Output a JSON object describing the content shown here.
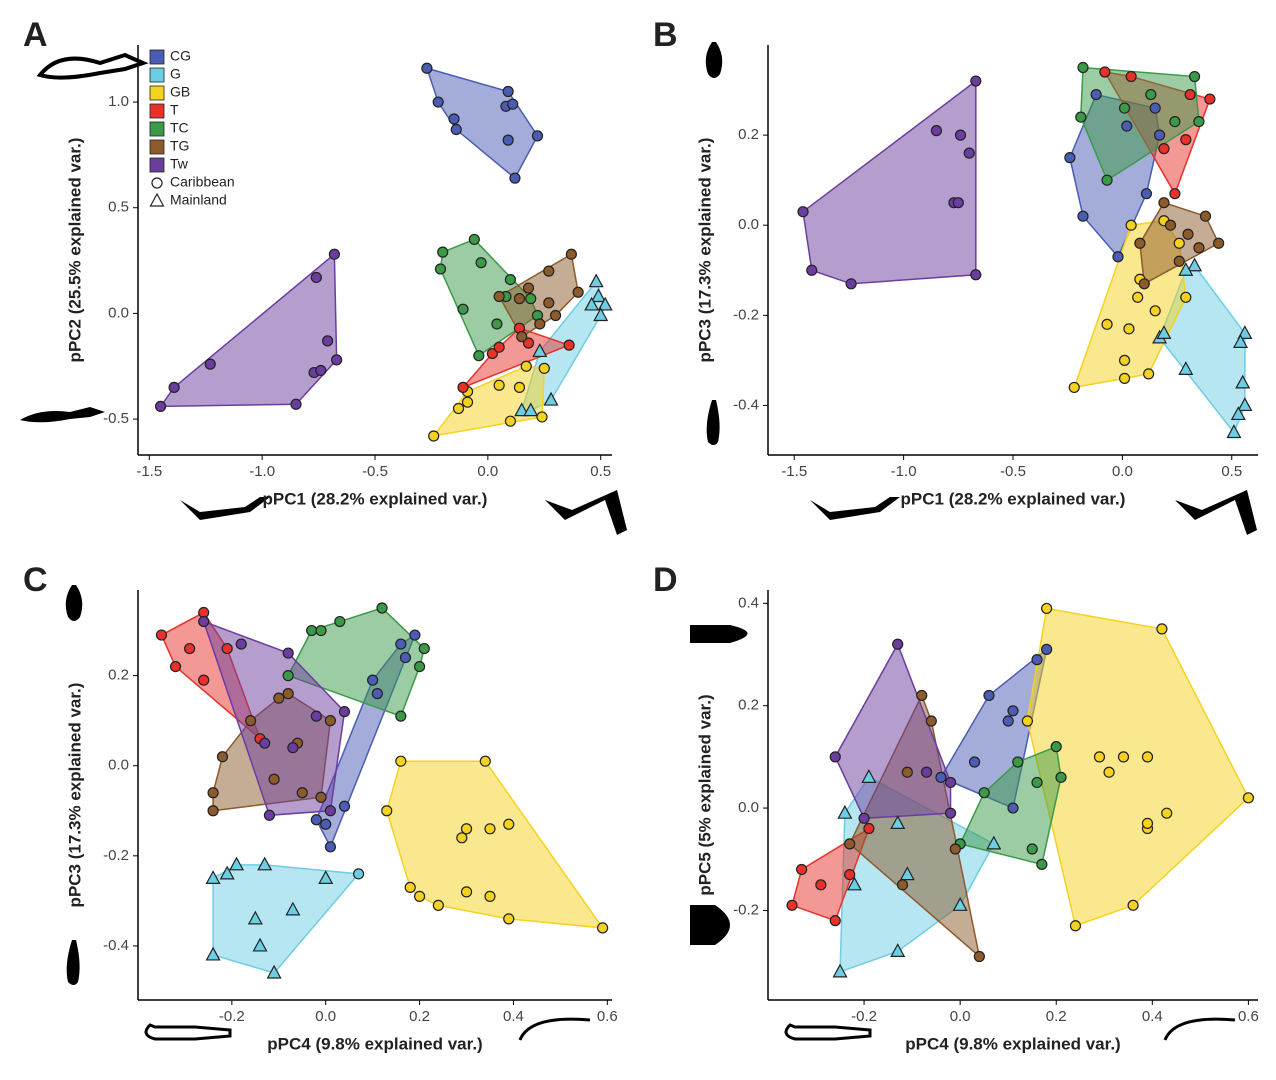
{
  "chart_data": [
    {
      "type": "scatter",
      "panel": "A",
      "xlabel": "pPC1 (28.2% explained var.)",
      "ylabel": "pPC2 (25.5% explained var.)",
      "xlim": [
        -1.55,
        0.55
      ],
      "ylim": [
        -0.67,
        1.27
      ],
      "xticks": [
        -1.5,
        {
          "value": -1,
          "label": "-1.0"
        },
        -0.5,
        {
          "value": 0,
          "label": "0.0"
        },
        0.5
      ],
      "yticks": [
        -0.5,
        {
          "value": 0,
          "label": "0.0"
        },
        0.5,
        {
          "value": 1,
          "label": "1.0"
        }
      ],
      "legend": "top-left",
      "shape_legend": [
        {
          "name": "Caribbean",
          "marker": "circle"
        },
        {
          "name": "Mainland",
          "marker": "triangle"
        }
      ],
      "series": [
        {
          "name": "CG",
          "color": "#4a5cb3",
          "marker": "circle",
          "x": [
            -0.27,
            -0.22,
            -0.15,
            -0.14,
            0.09,
            0.08,
            0.11,
            0.09,
            0.22,
            0.12
          ],
          "y": [
            1.16,
            1.0,
            0.92,
            0.87,
            1.05,
            0.98,
            0.99,
            0.82,
            0.84,
            0.64
          ]
        },
        {
          "name": "G",
          "color": "#6dcde3",
          "marker": "triangle",
          "x": [
            0.48,
            0.49,
            0.52,
            0.5,
            0.46,
            0.23,
            0.15,
            0.28,
            0.19
          ],
          "y": [
            0.15,
            0.08,
            0.04,
            -0.01,
            0.04,
            -0.18,
            -0.46,
            -0.41,
            -0.46
          ]
        },
        {
          "name": "GB",
          "color": "#f5d21f",
          "marker": "circle",
          "x": [
            -0.24,
            -0.13,
            -0.09,
            -0.09,
            0.05,
            0.1,
            0.14,
            0.17,
            0.24,
            0.25
          ],
          "y": [
            -0.58,
            -0.45,
            -0.42,
            -0.37,
            -0.34,
            -0.51,
            -0.35,
            -0.25,
            -0.49,
            -0.26
          ]
        },
        {
          "name": "T",
          "color": "#e8312a",
          "marker": "circle",
          "x": [
            -0.11,
            0.02,
            0.14,
            0.18,
            0.36,
            0.05
          ],
          "y": [
            -0.35,
            -0.19,
            -0.07,
            -0.14,
            -0.15,
            -0.16
          ]
        },
        {
          "name": "TC",
          "color": "#3a9a47",
          "marker": "circle",
          "x": [
            -0.2,
            -0.21,
            -0.06,
            -0.03,
            0.1,
            0.08,
            -0.11,
            0.04,
            -0.04,
            0.22,
            0.19
          ],
          "y": [
            0.29,
            0.21,
            0.35,
            0.24,
            0.16,
            0.08,
            0.02,
            -0.05,
            -0.2,
            -0.01,
            0.07
          ]
        },
        {
          "name": "TG",
          "color": "#8c5a2b",
          "marker": "circle",
          "x": [
            0.37,
            0.27,
            0.05,
            0.18,
            0.14,
            0.27,
            0.3,
            0.4,
            0.23,
            0.15
          ],
          "y": [
            0.28,
            0.2,
            0.08,
            0.12,
            0.07,
            0.05,
            -0.01,
            0.1,
            -0.05,
            -0.11
          ]
        },
        {
          "name": "Tw",
          "color": "#6b3d9e",
          "marker": "circle",
          "x": [
            -1.45,
            -1.39,
            -1.23,
            -0.85,
            -0.77,
            -0.74,
            -0.76,
            -0.68,
            -0.71,
            -0.67
          ],
          "y": [
            -0.44,
            -0.35,
            -0.24,
            -0.43,
            -0.28,
            -0.27,
            0.17,
            0.28,
            -0.13,
            -0.22
          ]
        }
      ]
    },
    {
      "type": "scatter",
      "panel": "B",
      "xlabel": "pPC1 (28.2% explained var.)",
      "ylabel": "pPC3 (17.3% explained var.)",
      "xlim": [
        -1.62,
        0.62
      ],
      "ylim": [
        -0.51,
        0.4
      ],
      "xticks": [
        -1.5,
        {
          "value": -1,
          "label": "-1.0"
        },
        -0.5,
        {
          "value": 0,
          "label": "0.0"
        },
        0.5
      ],
      "yticks": [
        -0.4,
        -0.2,
        {
          "value": 0,
          "label": "0.0"
        },
        0.2
      ],
      "series": [
        {
          "name": "CG",
          "color": "#4a5cb3",
          "marker": "circle",
          "x": [
            -0.24,
            -0.18,
            -0.12,
            0.02,
            -0.02,
            0.11,
            0.15,
            0.17
          ],
          "y": [
            0.15,
            0.02,
            0.29,
            0.22,
            -0.07,
            0.07,
            0.26,
            0.2
          ]
        },
        {
          "name": "G",
          "color": "#6dcde3",
          "marker": "triangle",
          "x": [
            0.56,
            0.54,
            0.55,
            0.56,
            0.53,
            0.51,
            0.29,
            0.17,
            0.19,
            0.33,
            0.29
          ],
          "y": [
            -0.24,
            -0.26,
            -0.35,
            -0.4,
            -0.42,
            -0.46,
            -0.32,
            -0.25,
            -0.24,
            -0.09,
            -0.1
          ]
        },
        {
          "name": "GB",
          "color": "#f5d21f",
          "marker": "circle",
          "x": [
            -0.22,
            0.01,
            -0.07,
            0.01,
            0.12,
            0.03,
            0.07,
            0.08,
            0.04,
            0.19,
            0.26,
            0.29,
            0.15
          ],
          "y": [
            -0.36,
            -0.34,
            -0.22,
            -0.3,
            -0.33,
            -0.23,
            -0.16,
            -0.12,
            0.0,
            0.01,
            -0.04,
            -0.16,
            -0.19
          ]
        },
        {
          "name": "T",
          "color": "#e8312a",
          "marker": "circle",
          "x": [
            -0.08,
            0.04,
            0.4,
            0.31,
            0.24,
            0.19,
            0.29
          ],
          "y": [
            0.34,
            0.33,
            0.28,
            0.29,
            0.07,
            0.17,
            0.19
          ]
        },
        {
          "name": "TC",
          "color": "#3a9a47",
          "marker": "circle",
          "x": [
            -0.18,
            -0.19,
            -0.07,
            0.01,
            0.13,
            0.33,
            0.35,
            0.24
          ],
          "y": [
            0.35,
            0.24,
            0.1,
            0.26,
            0.29,
            0.33,
            0.23,
            0.23
          ]
        },
        {
          "name": "TG",
          "color": "#8c5a2b",
          "marker": "circle",
          "x": [
            0.08,
            0.19,
            0.22,
            0.3,
            0.38,
            0.44,
            0.35,
            0.1,
            0.26
          ],
          "y": [
            -0.04,
            0.05,
            0.0,
            -0.02,
            0.02,
            -0.04,
            -0.05,
            -0.13,
            -0.08
          ]
        },
        {
          "name": "Tw",
          "color": "#6b3d9e",
          "marker": "circle",
          "x": [
            -1.46,
            -1.42,
            -1.24,
            -0.67,
            -0.67,
            -0.85,
            -0.74,
            -0.7,
            -0.77,
            -0.75
          ],
          "y": [
            0.03,
            -0.1,
            -0.13,
            -0.11,
            0.32,
            0.21,
            0.2,
            0.16,
            0.05,
            0.05
          ]
        }
      ]
    },
    {
      "type": "scatter",
      "panel": "C",
      "xlabel": "pPC4 (9.8% explained var.)",
      "ylabel": "pPC3 (17.3% explained var.)",
      "xlim": [
        -0.4,
        0.61
      ],
      "ylim": [
        -0.52,
        0.39
      ],
      "xticks": [
        -0.2,
        {
          "value": 0,
          "label": "0.0"
        },
        0.2,
        0.4,
        0.6
      ],
      "yticks": [
        -0.4,
        -0.2,
        {
          "value": 0,
          "label": "0.0"
        },
        0.2
      ],
      "series": [
        {
          "name": "CG",
          "color": "#4a5cb3",
          "marker": "circle",
          "x": [
            0.19,
            0.16,
            0.1,
            0.11,
            0.04,
            0.01,
            -0.02,
            0.17,
            0.0
          ],
          "y": [
            0.29,
            0.27,
            0.19,
            0.16,
            -0.09,
            -0.18,
            -0.12,
            0.24,
            -0.13
          ]
        },
        {
          "name": "G",
          "color": "#6dcde3",
          "marker": "triangle",
          "markers": [
            "triangle",
            "triangle",
            "triangle",
            "triangle",
            "triangle",
            "triangle",
            "triangle",
            "triangle",
            "triangle",
            "triangle",
            "circle"
          ],
          "x": [
            -0.24,
            -0.24,
            -0.21,
            -0.19,
            -0.13,
            -0.15,
            -0.14,
            -0.07,
            -0.11,
            0.0,
            0.07
          ],
          "y": [
            -0.42,
            -0.25,
            -0.24,
            -0.22,
            -0.22,
            -0.34,
            -0.4,
            -0.32,
            -0.46,
            -0.25,
            -0.24
          ]
        },
        {
          "name": "GB",
          "color": "#f5d21f",
          "marker": "circle",
          "x": [
            0.16,
            0.13,
            0.34,
            0.3,
            0.35,
            0.39,
            0.59,
            0.18,
            0.2,
            0.24,
            0.3,
            0.35,
            0.39,
            0.3,
            0.29
          ],
          "y": [
            0.01,
            -0.1,
            0.01,
            -0.14,
            -0.14,
            -0.13,
            -0.36,
            -0.27,
            -0.29,
            -0.31,
            -0.28,
            -0.29,
            -0.34,
            -0.14,
            -0.16
          ]
        },
        {
          "name": "T",
          "color": "#e8312a",
          "marker": "circle",
          "x": [
            -0.35,
            -0.26,
            -0.29,
            -0.32,
            -0.26,
            -0.21,
            -0.14
          ],
          "y": [
            0.29,
            0.34,
            0.26,
            0.22,
            0.19,
            0.26,
            0.06
          ]
        },
        {
          "name": "TC",
          "color": "#3a9a47",
          "marker": "circle",
          "x": [
            -0.03,
            0.03,
            0.12,
            0.16,
            0.21,
            0.2,
            -0.08,
            -0.01
          ],
          "y": [
            0.3,
            0.32,
            0.35,
            0.11,
            0.26,
            0.22,
            0.2,
            0.3
          ]
        },
        {
          "name": "TG",
          "color": "#8c5a2b",
          "marker": "circle",
          "x": [
            -0.24,
            -0.24,
            -0.22,
            -0.16,
            -0.1,
            -0.06,
            0.01,
            -0.01,
            -0.05,
            -0.11,
            -0.08
          ],
          "y": [
            -0.06,
            -0.1,
            0.02,
            0.1,
            0.15,
            0.05,
            0.1,
            -0.07,
            -0.06,
            -0.03,
            0.16
          ]
        },
        {
          "name": "Tw",
          "color": "#6b3d9e",
          "marker": "circle",
          "x": [
            -0.26,
            -0.18,
            -0.13,
            -0.02,
            -0.08,
            -0.12,
            -0.07,
            0.01,
            0.04
          ],
          "y": [
            0.32,
            0.27,
            0.05,
            0.11,
            0.25,
            -0.11,
            0.04,
            -0.1,
            0.12
          ]
        }
      ]
    },
    {
      "type": "scatter",
      "panel": "D",
      "xlabel": "pPC4 (9.8% explained var.)",
      "ylabel": "pPC5 (5% explained var.)",
      "xlim": [
        -0.4,
        0.62
      ],
      "ylim": [
        -0.375,
        0.426
      ],
      "xticks": [
        -0.2,
        {
          "value": 0,
          "label": "0.0"
        },
        0.2,
        0.4,
        0.6
      ],
      "yticks": [
        -0.2,
        {
          "value": 0,
          "label": "0.0"
        },
        0.2,
        0.4
      ],
      "series": [
        {
          "name": "CG",
          "color": "#4a5cb3",
          "marker": "circle",
          "x": [
            0.18,
            0.16,
            0.11,
            0.06,
            0.1,
            0.11,
            0.03,
            -0.04
          ],
          "y": [
            0.31,
            0.29,
            0.19,
            0.22,
            0.17,
            0.0,
            0.09,
            0.06
          ]
        },
        {
          "name": "G",
          "color": "#6dcde3",
          "marker": "triangle",
          "x": [
            -0.25,
            -0.19,
            -0.24,
            -0.22,
            -0.13,
            -0.11,
            -0.13,
            0.0,
            0.07
          ],
          "y": [
            -0.32,
            0.06,
            -0.01,
            -0.15,
            -0.03,
            -0.13,
            -0.28,
            -0.19,
            -0.07
          ]
        },
        {
          "name": "GB",
          "color": "#f5d21f",
          "marker": "circle",
          "x": [
            0.18,
            0.42,
            0.6,
            0.36,
            0.24,
            0.14,
            0.39,
            0.34,
            0.31,
            0.43,
            0.39,
            0.29,
            0.39
          ],
          "y": [
            0.39,
            0.35,
            0.02,
            -0.19,
            -0.23,
            0.17,
            0.1,
            0.1,
            0.07,
            -0.01,
            -0.04,
            0.1,
            -0.03
          ]
        },
        {
          "name": "T",
          "color": "#e8312a",
          "marker": "circle",
          "x": [
            -0.35,
            -0.33,
            -0.29,
            -0.26,
            -0.23,
            -0.19
          ],
          "y": [
            -0.19,
            -0.12,
            -0.15,
            -0.22,
            -0.13,
            -0.04
          ]
        },
        {
          "name": "TC",
          "color": "#3a9a47",
          "marker": "circle",
          "x": [
            0.2,
            0.16,
            0.15,
            0.17,
            0.12,
            0.05,
            0.0,
            0.21
          ],
          "y": [
            0.12,
            0.05,
            -0.08,
            -0.11,
            0.09,
            0.03,
            -0.07,
            0.06
          ]
        },
        {
          "name": "TG",
          "color": "#8c5a2b",
          "marker": "circle",
          "x": [
            -0.08,
            -0.01,
            0.04,
            -0.12,
            -0.23,
            -0.06,
            -0.11
          ],
          "y": [
            0.22,
            -0.08,
            -0.29,
            -0.15,
            -0.07,
            0.17,
            0.07
          ]
        },
        {
          "name": "Tw",
          "color": "#6b3d9e",
          "marker": "circle",
          "x": [
            -0.26,
            -0.13,
            -0.07,
            -0.2,
            -0.02,
            -0.02
          ],
          "y": [
            0.1,
            0.32,
            0.07,
            -0.02,
            -0.01,
            0.05
          ]
        }
      ]
    }
  ]
}
